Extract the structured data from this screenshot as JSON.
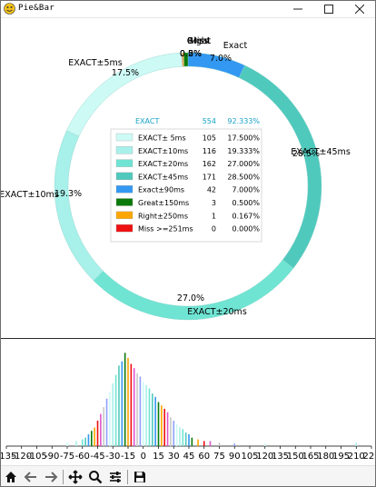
{
  "window": {
    "title": "Pie&Bar"
  },
  "toolbar": {
    "icons": [
      "home-icon",
      "back-arrow-icon",
      "forward-arrow-icon",
      "pan-icon",
      "zoom-icon",
      "configure-icon",
      "save-icon"
    ]
  },
  "legend": {
    "header": {
      "label": "EXACT",
      "count": "554",
      "percent": "92.333%"
    },
    "rows": [
      {
        "label": "EXACT± 5ms",
        "count": "105",
        "percent": "17.500%",
        "color": "#cdfaf5"
      },
      {
        "label": "EXACT±10ms",
        "count": "116",
        "percent": "19.333%",
        "color": "#a8f0ea"
      },
      {
        "label": "EXACT±20ms",
        "count": "162",
        "percent": "27.000%",
        "color": "#6fe4d3"
      },
      {
        "label": "EXACT±45ms",
        "count": "171",
        "percent": "28.500%",
        "color": "#50c9bd"
      },
      {
        "label": "Exact±90ms",
        "count": "42",
        "percent": "7.000%",
        "color": "#3398f2"
      },
      {
        "label": "Great±150ms",
        "count": "3",
        "percent": "0.500%",
        "color": "#0a7a0a"
      },
      {
        "label": "Right±250ms",
        "count": "1",
        "percent": "0.167%",
        "color": "#ffa500"
      },
      {
        "label": "Miss >=251ms",
        "count": "0",
        "percent": "0.000%",
        "color": "#ee1111"
      }
    ]
  },
  "chart_data": [
    {
      "type": "pie",
      "donut": true,
      "slices": [
        {
          "label": "Exact",
          "value": 42,
          "pct_label": "7.0%",
          "color": "#3398f2"
        },
        {
          "label": "EXACT±45ms",
          "value": 171,
          "pct_label": "28.5%",
          "color": "#50c9bd"
        },
        {
          "label": "EXACT±20ms",
          "value": 162,
          "pct_label": "27.0%",
          "color": "#6fe4d3"
        },
        {
          "label": "EXACT±10ms",
          "value": 116,
          "pct_label": "19.3%",
          "color": "#a8f0ea"
        },
        {
          "label": "EXACT±5ms",
          "value": 105,
          "pct_label": "17.5%",
          "color": "#cdfaf5"
        },
        {
          "label": "Miss",
          "value": 0,
          "pct_label": "0.0%",
          "color": "#ee1111"
        },
        {
          "label": "Right",
          "value": 1,
          "pct_label": "0.2%",
          "color": "#ffa500"
        },
        {
          "label": "Great",
          "value": 3,
          "pct_label": "0.5%",
          "color": "#0a7a0a"
        }
      ]
    },
    {
      "type": "bar",
      "xlim": [
        -135,
        225
      ],
      "ylim": [
        0,
        120
      ],
      "x_ticks": [
        "-135",
        "-120",
        "-105",
        "-90",
        "-75",
        "-60",
        "-45",
        "-30",
        "-15",
        "0",
        "15",
        "30",
        "45",
        "60",
        "75",
        "90",
        "105",
        "120",
        "135",
        "150",
        "165",
        "180",
        "195",
        "210",
        "225"
      ],
      "x": [
        -75,
        -66,
        -60,
        -57,
        -54,
        -51,
        -48,
        -45,
        -42,
        -39,
        -36,
        -33,
        -30,
        -27,
        -24,
        -21,
        -18,
        -15,
        -12,
        -9,
        -6,
        -3,
        0,
        3,
        6,
        9,
        12,
        15,
        18,
        21,
        24,
        27,
        30,
        33,
        36,
        39,
        42,
        45,
        48,
        54,
        60,
        66,
        75,
        90,
        120,
        210
      ],
      "values": [
        4,
        6,
        8,
        10,
        14,
        18,
        22,
        30,
        38,
        46,
        56,
        64,
        74,
        84,
        95,
        100,
        110,
        104,
        97,
        92,
        86,
        82,
        76,
        72,
        68,
        62,
        58,
        52,
        48,
        44,
        40,
        34,
        30,
        26,
        22,
        20,
        16,
        14,
        10,
        8,
        6,
        6,
        4,
        3,
        3,
        4
      ],
      "colors": [
        "#cdfaf5",
        "#a8f0ea",
        "#6fe4d3",
        "#50c9bd",
        "#3398f2",
        "#0a7a0a",
        "#ffa500",
        "#ee1111",
        "#e056c8",
        "#c8c8c8",
        "#8ea0ff"
      ]
    }
  ]
}
